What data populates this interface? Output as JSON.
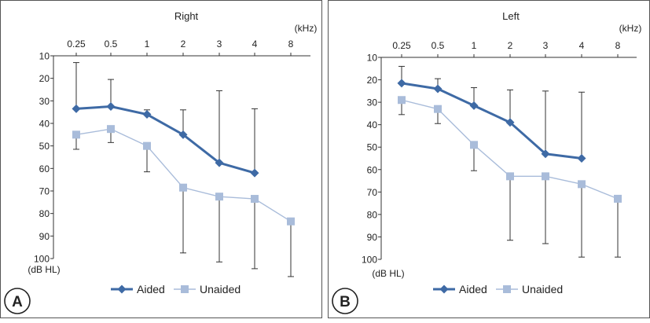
{
  "colors": {
    "aided": "#3e6aa5",
    "unaided": "#a9bcda",
    "error_bar": "#333333"
  },
  "chart_data": [
    {
      "type": "line",
      "panel_label": "A",
      "title": "Right",
      "x_unit": "(kHz)",
      "y_unit": "(dB HL)",
      "categories": [
        "0.25",
        "0.5",
        "1",
        "2",
        "3",
        "4",
        "8"
      ],
      "y_ticks": [
        10,
        20,
        30,
        40,
        50,
        60,
        70,
        80,
        90,
        100
      ],
      "ylim": [
        10,
        100
      ],
      "y_inverted": true,
      "grid": false,
      "legend_position": "bottom",
      "series": [
        {
          "name": "Aided",
          "marker": "diamond",
          "color": "#3e6aa5",
          "values": [
            33.5,
            32.5,
            36,
            45,
            57.5,
            62,
            null
          ],
          "error_upper": [
            13,
            20.5,
            34,
            34,
            25.5,
            33.5,
            null
          ]
        },
        {
          "name": "Unaided",
          "marker": "square",
          "color": "#a9bcda",
          "values": [
            45,
            42.5,
            50,
            68.5,
            72.5,
            73.5,
            83.5
          ],
          "error_lower": [
            51.5,
            48.5,
            61.5,
            97.5,
            101.5,
            104.5,
            108
          ]
        }
      ]
    },
    {
      "type": "line",
      "panel_label": "B",
      "title": "Left",
      "x_unit": "(kHz)",
      "y_unit": "(dB HL)",
      "categories": [
        "0.25",
        "0.5",
        "1",
        "2",
        "3",
        "4",
        "8"
      ],
      "y_ticks": [
        10,
        20,
        30,
        40,
        50,
        60,
        70,
        80,
        90,
        100
      ],
      "ylim": [
        10,
        100
      ],
      "y_inverted": true,
      "grid": false,
      "legend_position": "bottom",
      "series": [
        {
          "name": "Aided",
          "marker": "diamond",
          "color": "#3e6aa5",
          "values": [
            21.5,
            24,
            31.5,
            39,
            53,
            55,
            null
          ],
          "error_upper": [
            14,
            19.5,
            23.5,
            24.5,
            25,
            25.5,
            null
          ]
        },
        {
          "name": "Unaided",
          "marker": "square",
          "color": "#a9bcda",
          "values": [
            29,
            33,
            49,
            63,
            63,
            66.5,
            73
          ],
          "error_lower": [
            35.5,
            39.5,
            60.5,
            91.5,
            93,
            99,
            99
          ]
        }
      ]
    }
  ]
}
